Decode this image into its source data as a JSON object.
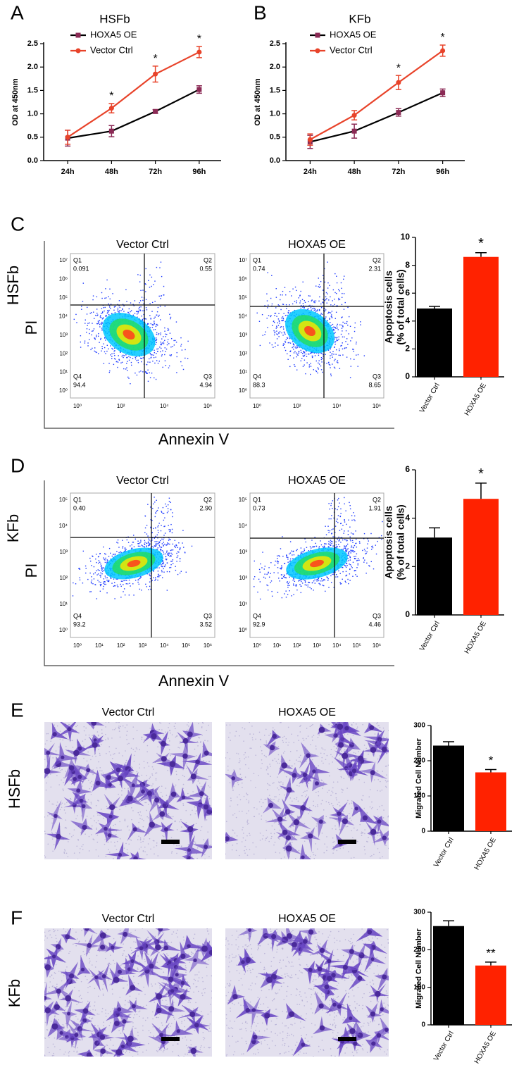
{
  "chart_data": [
    {
      "type": "line",
      "panel": "A",
      "title": "HSFb",
      "ylabel": "OD at 450nm",
      "categories": [
        "24h",
        "48h",
        "72h",
        "96h"
      ],
      "series": [
        {
          "name": "HOXA5 OE",
          "color": "#000000",
          "marker_color": "#8b2a55",
          "marker": "square",
          "values": [
            0.48,
            0.63,
            1.05,
            1.52
          ],
          "errors": [
            0.17,
            0.12,
            0.04,
            0.08
          ]
        },
        {
          "name": "Vector Ctrl",
          "color": "#e8432a",
          "marker_color": "#e8432a",
          "marker": "circle",
          "values": [
            0.5,
            1.12,
            1.85,
            2.32
          ],
          "errors": [
            0.15,
            0.1,
            0.17,
            0.12
          ]
        }
      ],
      "ylim": [
        0,
        2.5
      ],
      "yticks": [
        {
          "value": 0,
          "label": "0.0"
        },
        0.5,
        {
          "value": 1,
          "label": "1.0"
        },
        1.5,
        {
          "value": 2,
          "label": "2.0"
        },
        2.5
      ],
      "legend": "upper left",
      "annotations": [
        {
          "text": "*",
          "x": "48h"
        },
        {
          "text": "*",
          "x": "72h"
        },
        {
          "text": "*",
          "x": "96h"
        }
      ]
    },
    {
      "type": "line",
      "panel": "B",
      "title": "KFb",
      "ylabel": "OD at 450nm",
      "categories": [
        "24h",
        "48h",
        "72h",
        "96h"
      ],
      "series": [
        {
          "name": "HOXA5 OE",
          "color": "#000000",
          "marker_color": "#8b2a55",
          "marker": "square",
          "values": [
            0.4,
            0.63,
            1.03,
            1.45
          ],
          "errors": [
            0.14,
            0.15,
            0.08,
            0.08
          ]
        },
        {
          "name": "Vector Ctrl",
          "color": "#e8432a",
          "marker_color": "#e8432a",
          "marker": "circle",
          "values": [
            0.45,
            0.97,
            1.67,
            2.35
          ],
          "errors": [
            0.12,
            0.1,
            0.15,
            0.12
          ]
        }
      ],
      "ylim": [
        0,
        2.5
      ],
      "yticks": [
        {
          "value": 0,
          "label": "0.0"
        },
        0.5,
        {
          "value": 1,
          "label": "1.0"
        },
        1.5,
        {
          "value": 2,
          "label": "2.0"
        },
        2.5
      ],
      "legend": "upper left",
      "annotations": [
        {
          "text": "*",
          "x": "72h"
        },
        {
          "text": "*",
          "x": "96h"
        }
      ]
    },
    {
      "type": "bar",
      "ylabel": [
        "Apoptosis cells",
        "(% of total cells)"
      ],
      "categories": [
        "Vector Ctrl",
        "HOXA5 OE"
      ],
      "values": [
        4.9,
        8.6
      ],
      "errors": [
        0.15,
        0.3
      ],
      "colors": [
        "#000000",
        "#ff2200"
      ],
      "ylim": [
        0,
        10
      ],
      "yticks": [
        0,
        2,
        4,
        6,
        8,
        10
      ],
      "annotations": [
        {
          "text": "*",
          "x": "HOXA5 OE"
        }
      ]
    },
    {
      "type": "bar",
      "ylabel": [
        "Apoptosis cells",
        "(% of total cells)"
      ],
      "categories": [
        "Vector Ctrl",
        "HOXA5 OE"
      ],
      "values": [
        3.2,
        4.8
      ],
      "errors": [
        0.4,
        0.65
      ],
      "colors": [
        "#000000",
        "#ff2200"
      ],
      "ylim": [
        0,
        6
      ],
      "yticks": [
        0,
        2,
        4,
        6
      ],
      "annotations": [
        {
          "text": "*",
          "x": "HOXA5 OE"
        }
      ]
    },
    {
      "type": "bar",
      "ylabel": [
        "Migrated Cell Number"
      ],
      "categories": [
        "Vector Ctrl",
        "HOXA5 OE"
      ],
      "values": [
        243,
        167
      ],
      "errors": [
        11,
        8
      ],
      "colors": [
        "#000000",
        "#ff2200"
      ],
      "ylim": [
        0,
        300
      ],
      "yticks": [
        0,
        100,
        200,
        300
      ],
      "annotations": [
        {
          "text": "*",
          "x": "HOXA5 OE"
        }
      ]
    },
    {
      "type": "bar",
      "ylabel": [
        "Migrated Cell Number"
      ],
      "categories": [
        "Vector Ctrl",
        "HOXA5 OE"
      ],
      "values": [
        263,
        158
      ],
      "errors": [
        14,
        9
      ],
      "colors": [
        "#000000",
        "#ff2200"
      ],
      "ylim": [
        0,
        300
      ],
      "yticks": [
        0,
        100,
        200,
        300
      ],
      "annotations": [
        {
          "text": "**",
          "x": "HOXA5 OE"
        }
      ]
    }
  ],
  "flow_panels": [
    {
      "letter": "C",
      "row_label": "HSFb",
      "y_label": "PI",
      "x_label": "Annexin V",
      "plots": [
        {
          "title": "Vector Ctrl",
          "xticks": [
            "10⁰",
            "10²",
            "10⁴",
            "10⁶"
          ],
          "yticks": [
            "10⁰",
            "10¹",
            "10²",
            "10³",
            "10⁴",
            "10⁵",
            "10⁶",
            "10⁷"
          ],
          "quadrants": [
            [
              "Q1",
              "0.091"
            ],
            [
              "Q2",
              "0.55"
            ],
            [
              "Q3",
              "4.94"
            ],
            [
              "Q4",
              "94.4"
            ]
          ]
        },
        {
          "title": "HOXA5 OE",
          "xticks": [
            "10⁰",
            "10²",
            "10⁴",
            "10⁶"
          ],
          "yticks": [
            "10⁰",
            "10¹",
            "10²",
            "10³",
            "10⁴",
            "10⁵",
            "10⁶",
            "10⁷"
          ],
          "quadrants": [
            [
              "Q1",
              "0.74"
            ],
            [
              "Q2",
              "2.31"
            ],
            [
              "Q3",
              "8.65"
            ],
            [
              "Q4",
              "88.3"
            ]
          ]
        }
      ]
    },
    {
      "letter": "D",
      "row_label": "KFb",
      "y_label": "PI",
      "x_label": "Annexin V",
      "plots": [
        {
          "title": "Vector Ctrl",
          "xticks": [
            "10⁰",
            "10¹",
            "10²",
            "10³",
            "10⁴",
            "10⁵",
            "10⁶"
          ],
          "yticks": [
            "10⁰",
            "10¹",
            "10²",
            "10³",
            "10⁴",
            "10⁵"
          ],
          "quadrants": [
            [
              "Q1",
              "0.40"
            ],
            [
              "Q2",
              "2.90"
            ],
            [
              "Q3",
              "3.52"
            ],
            [
              "Q4",
              "93.2"
            ]
          ]
        },
        {
          "title": "HOXA5 OE",
          "xticks": [
            "10⁰",
            "10¹",
            "10²",
            "10³",
            "10⁴",
            "10⁵",
            "10⁶"
          ],
          "yticks": [
            "10⁰",
            "10¹",
            "10²",
            "10³",
            "10⁴",
            "10⁵"
          ],
          "quadrants": [
            [
              "Q1",
              "0.73"
            ],
            [
              "Q2",
              "1.91"
            ],
            [
              "Q3",
              "4.46"
            ],
            [
              "Q4",
              "92.9"
            ]
          ]
        }
      ]
    }
  ],
  "image_panels": [
    {
      "letter": "E",
      "row_label": "HSFb",
      "titles": [
        "Vector Ctrl",
        "HOXA5 OE"
      ]
    },
    {
      "letter": "F",
      "row_label": "KFb",
      "titles": [
        "Vector Ctrl",
        "HOXA5 OE"
      ]
    }
  ]
}
